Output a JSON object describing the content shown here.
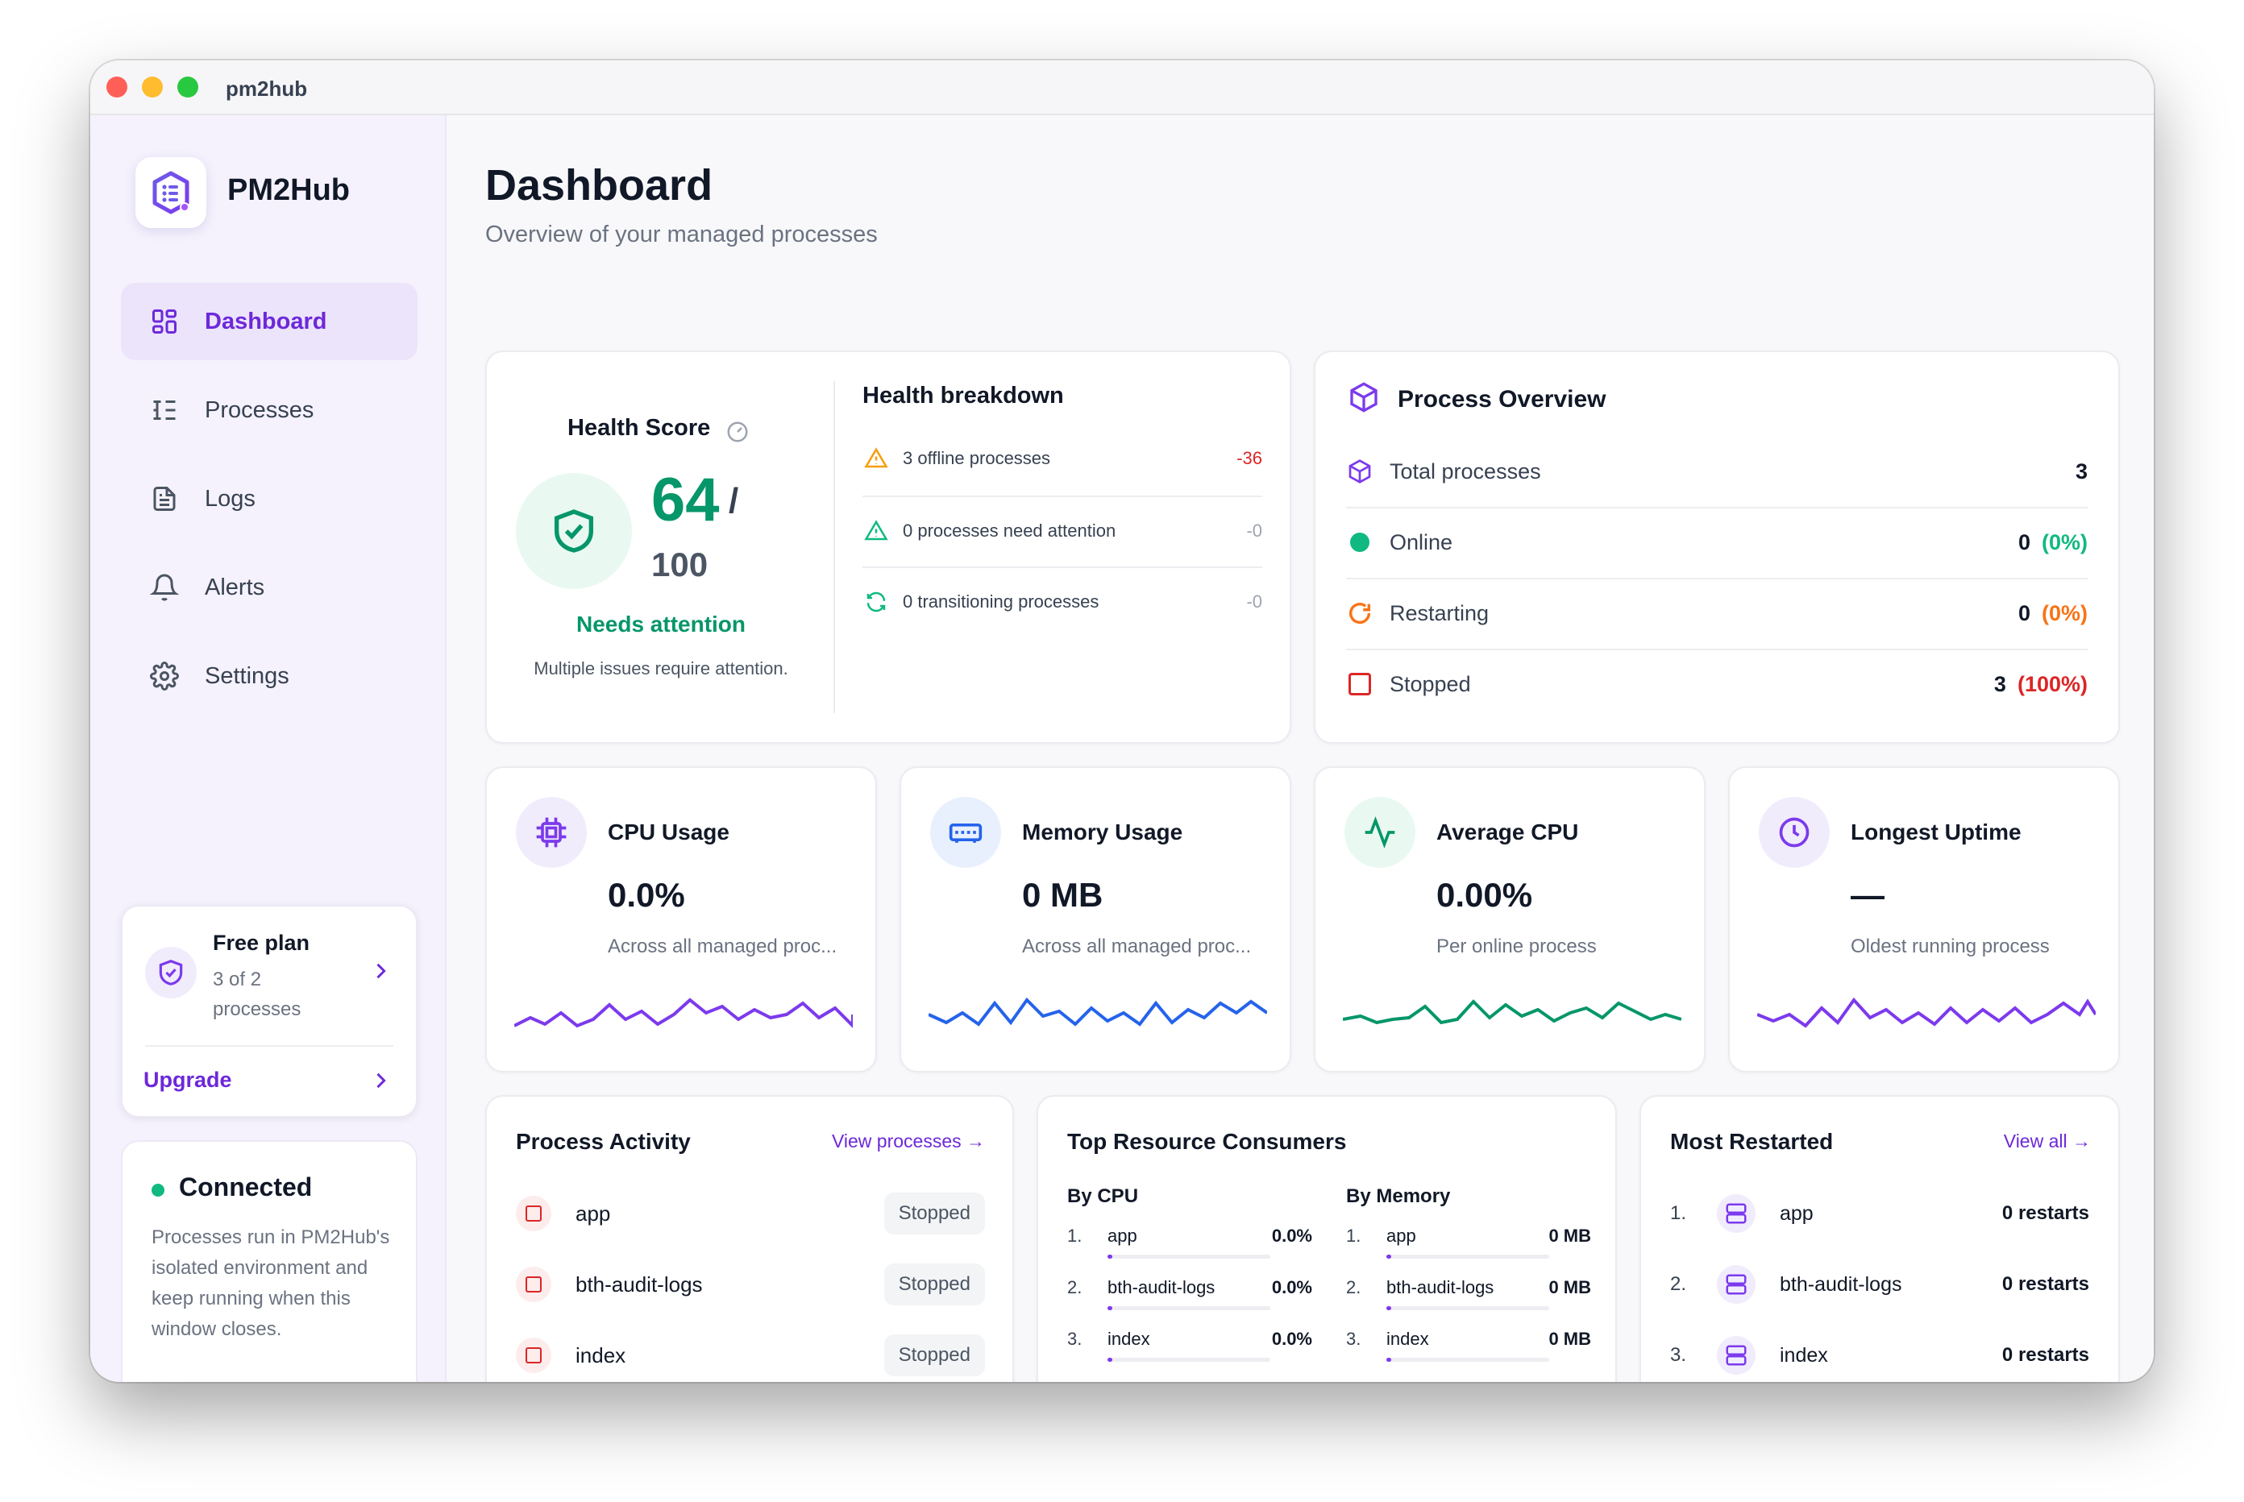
{
  "window": {
    "title": "pm2hub"
  },
  "sidebar": {
    "brand": "PM2Hub",
    "nav": [
      {
        "label": "Dashboard",
        "icon": "dashboard-icon",
        "active": true
      },
      {
        "label": "Processes",
        "icon": "list-icon",
        "active": false
      },
      {
        "label": "Logs",
        "icon": "file-icon",
        "active": false
      },
      {
        "label": "Alerts",
        "icon": "bell-icon",
        "active": false
      },
      {
        "label": "Settings",
        "icon": "gear-icon",
        "active": false
      }
    ],
    "plan": {
      "title": "Free plan",
      "sub": "3 of 2 processes",
      "upgrade": "Upgrade"
    },
    "connection": {
      "title": "Connected",
      "text": "Processes run in PM2Hub's isolated environment and keep running when this window closes."
    }
  },
  "header": {
    "title": "Dashboard",
    "subtitle": "Overview of your managed processes"
  },
  "health": {
    "title": "Health Score",
    "score": "64",
    "slash": "/",
    "max": "100",
    "status": "Needs attention",
    "note": "Multiple issues require attention.",
    "breakdown_title": "Health breakdown",
    "breakdown": [
      {
        "label": "3 offline processes",
        "value": "-36",
        "icon": "warning-icon",
        "color": "#f59e0b"
      },
      {
        "label": "0 processes need attention",
        "value": "-0",
        "icon": "warning-icon",
        "color": "#10b981"
      },
      {
        "label": "0 transitioning processes",
        "value": "-0",
        "icon": "refresh-icon",
        "color": "#10b981"
      }
    ]
  },
  "overview": {
    "title": "Process Overview",
    "rows": [
      {
        "label": "Total processes",
        "value": "3",
        "pct": "",
        "icon": "cube-icon"
      },
      {
        "label": "Online",
        "value": "0",
        "pct": "(0%)",
        "icon": "online-dot-icon",
        "color": "#10b981"
      },
      {
        "label": "Restarting",
        "value": "0",
        "pct": "(0%)",
        "icon": "restart-icon",
        "color": "#f97316"
      },
      {
        "label": "Stopped",
        "value": "3",
        "pct": "(100%)",
        "icon": "stopped-square-icon",
        "color": "#dc2626"
      }
    ]
  },
  "stats": [
    {
      "title": "CPU Usage",
      "value": "0.0%",
      "sub": "Across all managed proc...",
      "icon": "cpu-icon",
      "color": "#7c3aed",
      "bg": "#f1ecfc"
    },
    {
      "title": "Memory Usage",
      "value": "0 MB",
      "sub": "Across all managed proc...",
      "icon": "memory-icon",
      "color": "#2563eb",
      "bg": "#e8f0fe"
    },
    {
      "title": "Average CPU",
      "value": "0.00%",
      "sub": "Per online process",
      "icon": "pulse-icon",
      "color": "#059669",
      "bg": "#e9f9f1"
    },
    {
      "title": "Longest Uptime",
      "value": "—",
      "sub": "Oldest running process",
      "icon": "clock-icon",
      "color": "#7c3aed",
      "bg": "#f1ecfc"
    }
  ],
  "activity": {
    "title": "Process Activity",
    "link": "View processes →",
    "rows": [
      {
        "name": "app",
        "status": "Stopped"
      },
      {
        "name": "bth-audit-logs",
        "status": "Stopped"
      },
      {
        "name": "index",
        "status": "Stopped"
      }
    ]
  },
  "consumers": {
    "title": "Top Resource Consumers",
    "by_cpu_title": "By CPU",
    "by_mem_title": "By Memory",
    "by_cpu": [
      {
        "rank": "1.",
        "name": "app",
        "value": "0.0%",
        "fill": 0.03
      },
      {
        "rank": "2.",
        "name": "bth-audit-logs",
        "value": "0.0%",
        "fill": 0.03
      },
      {
        "rank": "3.",
        "name": "index",
        "value": "0.0%",
        "fill": 0.03
      }
    ],
    "by_mem": [
      {
        "rank": "1.",
        "name": "app",
        "value": "0 MB",
        "fill": 0.03
      },
      {
        "rank": "2.",
        "name": "bth-audit-logs",
        "value": "0 MB",
        "fill": 0.03
      },
      {
        "rank": "3.",
        "name": "index",
        "value": "0 MB",
        "fill": 0.03
      }
    ]
  },
  "restarted": {
    "title": "Most Restarted",
    "link": "View all →",
    "rows": [
      {
        "rank": "1.",
        "name": "app",
        "value": "0 restarts"
      },
      {
        "rank": "2.",
        "name": "bth-audit-logs",
        "value": "0 restarts"
      },
      {
        "rank": "3.",
        "name": "index",
        "value": "0 restarts"
      }
    ]
  }
}
